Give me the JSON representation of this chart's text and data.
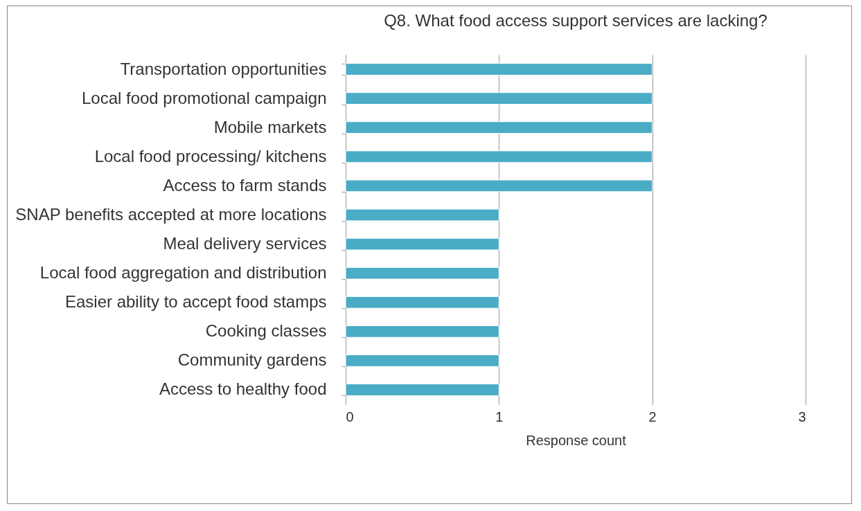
{
  "chart_data": {
    "type": "bar",
    "orientation": "horizontal",
    "title": "Q8. What food access support services are lacking?",
    "xlabel": "Response count",
    "categories": [
      "Transportation opportunities",
      "Local food promotional campaign",
      "Mobile markets",
      "Local food processing/ kitchens",
      "Access to farm stands",
      "SNAP benefits accepted at more locations",
      "Meal delivery services",
      "Local food aggregation and distribution",
      "Easier ability to accept food stamps",
      "Cooking classes",
      "Community gardens",
      "Access to healthy food"
    ],
    "values": [
      2,
      2,
      2,
      2,
      2,
      1,
      1,
      1,
      1,
      1,
      1,
      1
    ],
    "color": "#4bacc6",
    "xlim": [
      0,
      3
    ],
    "xticks": [
      0,
      1,
      2,
      3
    ],
    "grid": "x"
  }
}
